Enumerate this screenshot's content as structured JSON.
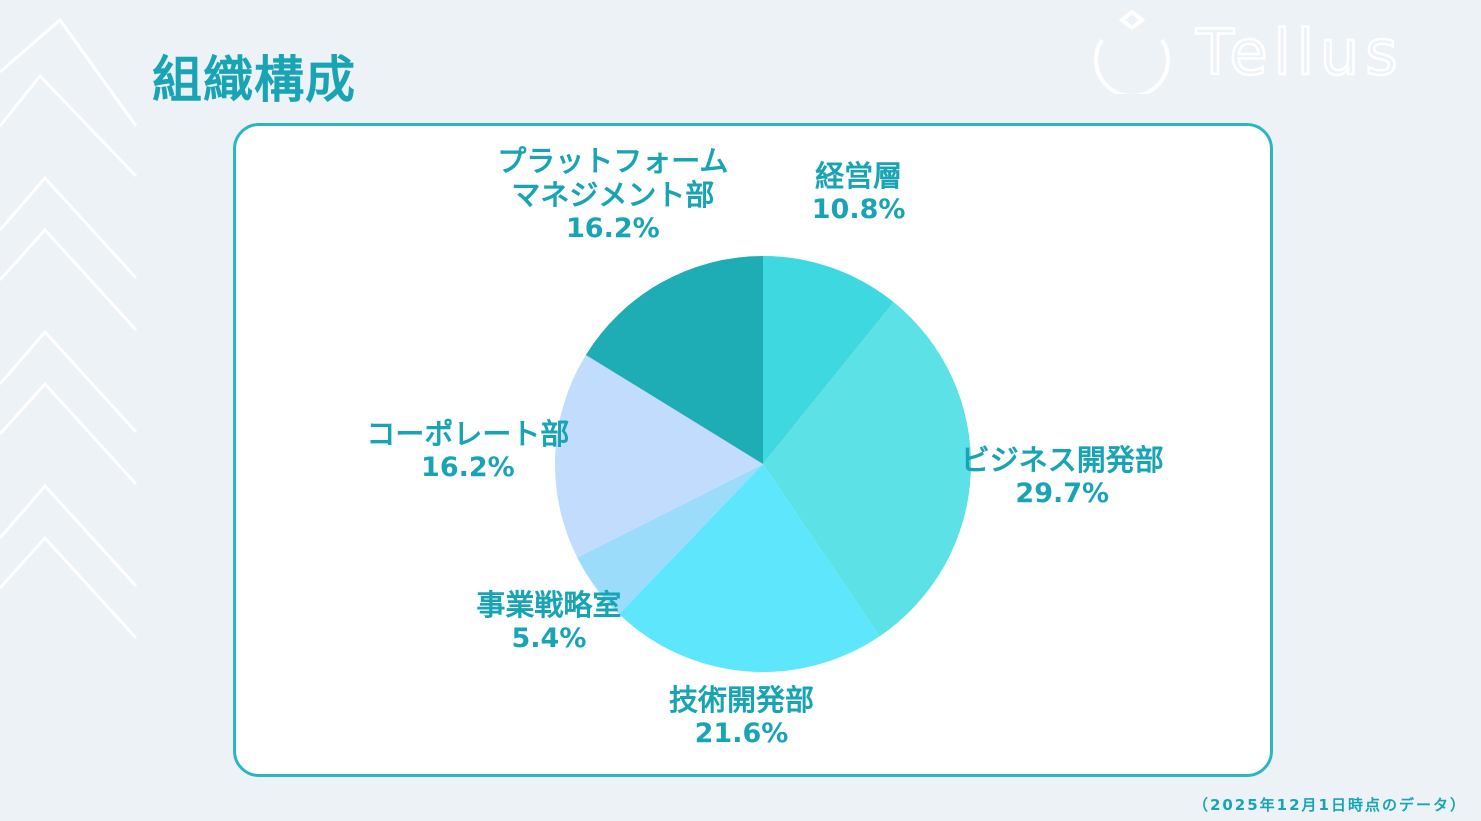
{
  "page": {
    "title": "組織構成",
    "footnote": "（2025年12月1日時点のデータ）",
    "logo_text": "Tellus"
  },
  "chart_data": {
    "type": "pie",
    "title": "",
    "start_angle_deg": 0,
    "direction": "clockwise",
    "slices": [
      {
        "name": "経営層",
        "name_lines": [
          "経営層"
        ],
        "value": 10.8,
        "label": "10.8%",
        "color": "#3ed9e0"
      },
      {
        "name": "ビジネス開発部",
        "name_lines": [
          "ビジネス開発部"
        ],
        "value": 29.7,
        "label": "29.7%",
        "color": "#5ce1e6"
      },
      {
        "name": "技術開発部",
        "name_lines": [
          "技術開発部"
        ],
        "value": 21.6,
        "label": "21.6%",
        "color": "#5ee6fc"
      },
      {
        "name": "事業戦略室",
        "name_lines": [
          "事業戦略室"
        ],
        "value": 5.4,
        "label": "5.4%",
        "color": "#9bdcfb"
      },
      {
        "name": "コーポレート部",
        "name_lines": [
          "コーポレート部"
        ],
        "value": 16.2,
        "label": "16.2%",
        "color": "#c1dcfd"
      },
      {
        "name": "プラットフォームマネジメント部",
        "name_lines": [
          "プラットフォーム",
          "マネジメント部"
        ],
        "value": 16.2,
        "label": "16.2%",
        "color": "#1eadb4"
      }
    ],
    "colors": {
      "accent": "#19a4b6",
      "card_border": "#2ab6c6",
      "background": "#edf2f7"
    }
  }
}
